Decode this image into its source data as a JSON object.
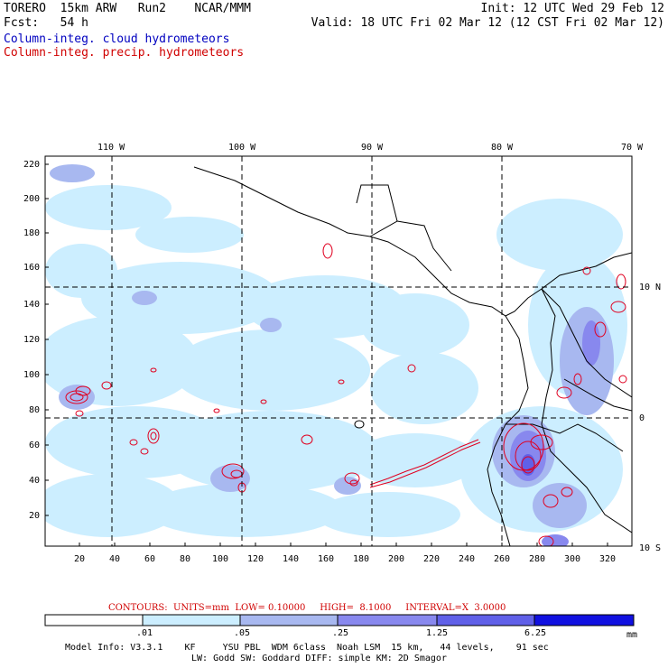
{
  "header": {
    "left_line1": "TORERO  15km ARW   Run2    NCAR/MMM",
    "left_line2": "Fcst:   54 h",
    "right_line1": "Init: 12 UTC Wed 29 Feb 12",
    "right_line2": "Valid: 18 UTC Fri 02 Mar 12 (12 CST Fri 02 Mar 12)",
    "legend_cloud": "Column-integ. cloud hydrometeors",
    "legend_precip": "Column-integ. precip. hydrometeors"
  },
  "colors": {
    "cloud_legend": "#0000c0",
    "precip_legend": "#d00000",
    "fill_levels": [
      "#ffffff",
      "#cceeff",
      "#a8b8f0",
      "#8888ee",
      "#6060e8",
      "#3030e0",
      "#1010e0"
    ],
    "contour": "#e00020"
  },
  "map": {
    "lon_labels": [
      "110 W",
      "100 W",
      "90 W",
      "80 W",
      "70 W"
    ],
    "lat_labels": [
      "10 N",
      "0",
      "10 S"
    ],
    "y_ticks": [
      "220",
      "200",
      "180",
      "160",
      "140",
      "120",
      "100",
      "80",
      "60",
      "40",
      "20"
    ],
    "x_ticks": [
      "20",
      "40",
      "60",
      "80",
      "100",
      "120",
      "140",
      "160",
      "180",
      "200",
      "220",
      "240",
      "260",
      "280",
      "300",
      "320"
    ]
  },
  "contours_info": {
    "text": "CONTOURS:  UNITS=mm  LOW= 0.10000     HIGH=  8.1000     INTERVAL=X  3.0000"
  },
  "colorbar": {
    "labels": [
      ".01",
      ".05",
      ".25",
      "1.25",
      "6.25"
    ],
    "units": "mm"
  },
  "model_info": {
    "line1": "Model Info: V3.3.1    KF     YSU PBL  WDM 6class  Noah LSM  15 km,   44 levels,    91 sec",
    "line2": "LW: Godd SW: Goddard DIFF: simple KM: 2D Smagor"
  }
}
